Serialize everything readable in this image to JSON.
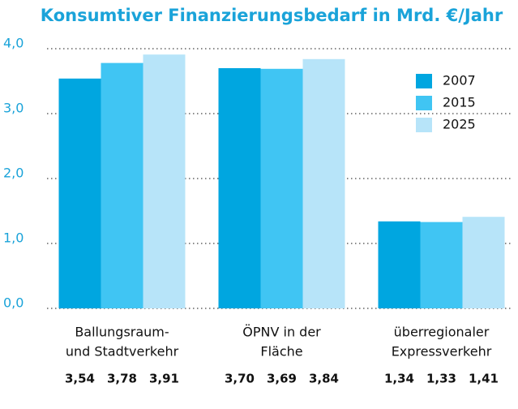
{
  "chart_data": {
    "type": "bar",
    "title": "Konsumtiver Finanzierungsbedarf in Mrd. €/Jahr",
    "categories": [
      [
        "Ballungsraum-",
        "und Stadtverkehr"
      ],
      [
        "ÖPNV in der",
        "Fläche"
      ],
      [
        "überregionaler",
        "Expressverkehr"
      ]
    ],
    "series": [
      {
        "name": "2007",
        "color": "#00a6e0",
        "values": [
          3.54,
          3.7,
          1.34
        ],
        "value_labels": [
          "3,54",
          "3,70",
          "1,34"
        ]
      },
      {
        "name": "2015",
        "color": "#40c5f3",
        "values": [
          3.78,
          3.69,
          1.33
        ],
        "value_labels": [
          "3,78",
          "3,69",
          "1,33"
        ]
      },
      {
        "name": "2025",
        "color": "#b7e4f9",
        "values": [
          3.91,
          3.84,
          1.41
        ],
        "value_labels": [
          "3,91",
          "3,84",
          "1,41"
        ]
      }
    ],
    "ylim": [
      0,
      4
    ],
    "yticks": [
      {
        "value": 0,
        "label": "0,0"
      },
      {
        "value": 1,
        "label": "1,0"
      },
      {
        "value": 2,
        "label": "2,0"
      },
      {
        "value": 3,
        "label": "3,0"
      },
      {
        "value": 4,
        "label": "4,0"
      }
    ],
    "grid": true,
    "legend": "upper right"
  }
}
